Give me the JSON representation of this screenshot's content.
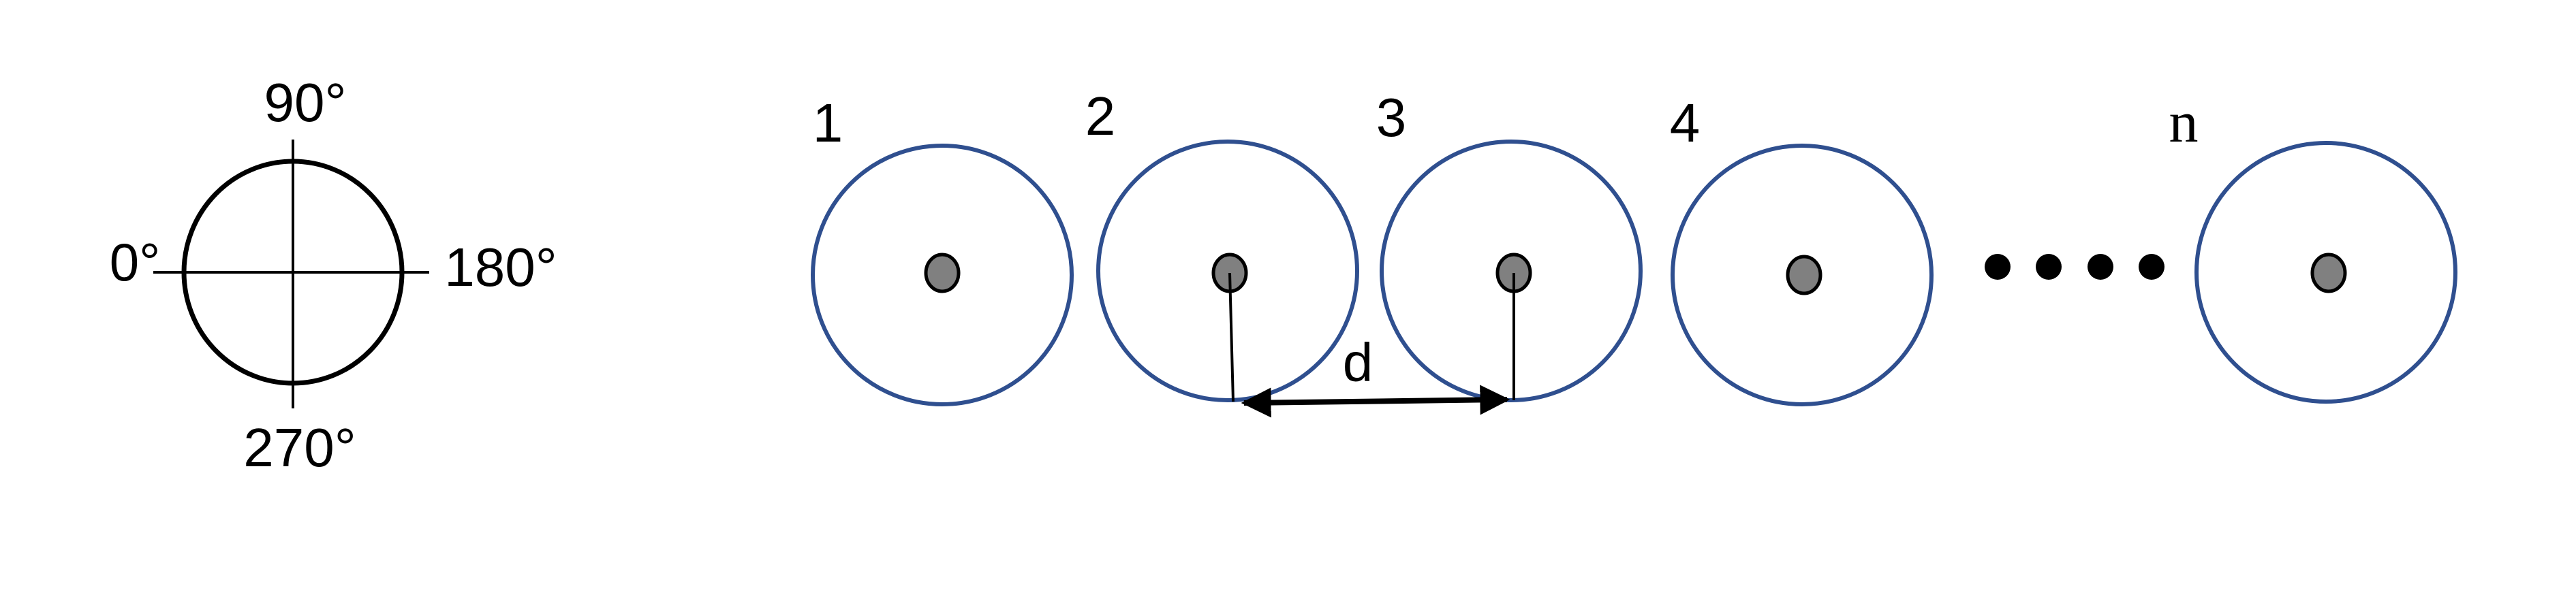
{
  "compass": {
    "top_label": "90°",
    "left_label": "0°",
    "right_label": "180°",
    "bottom_label": "270°"
  },
  "array": {
    "element_labels": [
      "1",
      "2",
      "3",
      "4",
      "n"
    ],
    "distance_label": "d",
    "ellipsis_dot_count": 4
  },
  "colors": {
    "element_stroke": "#2f4f8f",
    "center_fill": "#808080",
    "line": "#000000",
    "background": "#ffffff"
  }
}
